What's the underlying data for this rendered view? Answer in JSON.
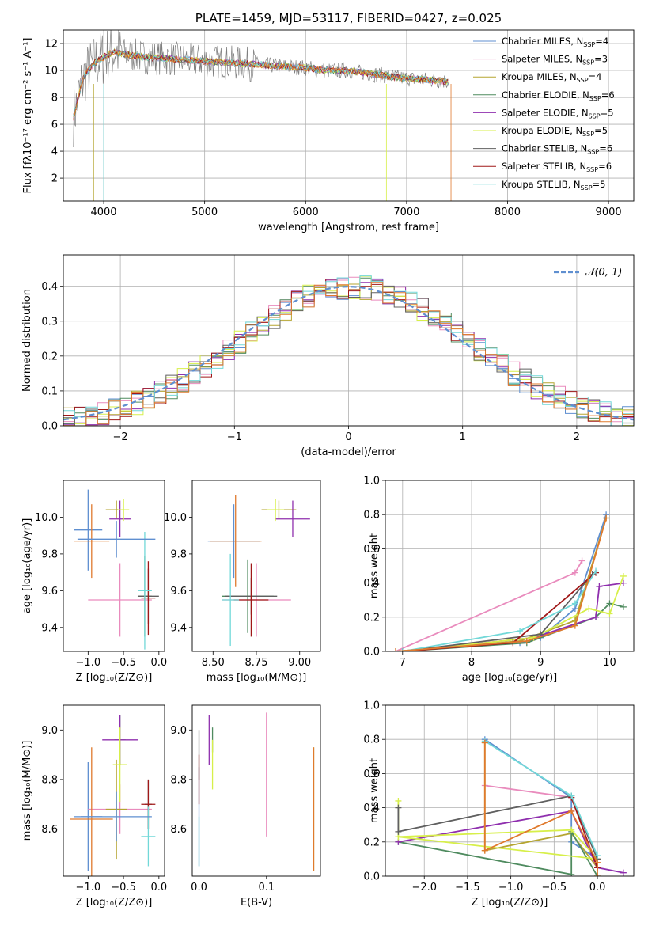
{
  "colors": {
    "s1": "#5f8fd0",
    "s2": "#e98bbd",
    "s3": "#b5a531",
    "s4": "#4f8b5f",
    "s5": "#8f2fae",
    "s6": "#d7ef4a",
    "s7": "#606060",
    "s8": "#a01818",
    "s9": "#72d8d8",
    "fit": "#e07a2d",
    "data": "#7f7f7f",
    "normal": "#5f8fd0"
  },
  "chart_data": [
    {
      "type": "line",
      "title": "PLATE=1459, MJD=53117, FIBERID=0427, z=0.025",
      "xlabel": "wavelength [Angstrom, rest frame]",
      "ylabel": "Flux [fλ10⁻¹⁷ erg cm⁻² s⁻¹ A⁻¹]",
      "xlim": [
        3600,
        9250
      ],
      "ylim": [
        0.3,
        13
      ],
      "xticks": [
        "4000",
        "5000",
        "6000",
        "7000",
        "8000",
        "9000"
      ],
      "yticks": [
        "2",
        "4",
        "6",
        "8",
        "10",
        "12"
      ],
      "grid": true,
      "legend": "top-right",
      "legend_entries": [
        {
          "name": "Chabrier MILES, N",
          "sub": "SSP",
          "rest": "=4",
          "color": "s1"
        },
        {
          "name": "Salpeter MILES, N",
          "sub": "SSP",
          "rest": "=3",
          "color": "s2"
        },
        {
          "name": "Kroupa MILES, N",
          "sub": "SSP",
          "rest": "=4",
          "color": "s3"
        },
        {
          "name": "Chabrier ELODIE, N",
          "sub": "SSP",
          "rest": "=6",
          "color": "s4"
        },
        {
          "name": "Salpeter ELODIE, N",
          "sub": "SSP",
          "rest": "=5",
          "color": "s5"
        },
        {
          "name": "Kroupa ELODIE, N",
          "sub": "SSP",
          "rest": "=5",
          "color": "s6"
        },
        {
          "name": "Chabrier STELIB, N",
          "sub": "SSP",
          "rest": "=6",
          "color": "s7"
        },
        {
          "name": "Salpeter STELIB, N",
          "sub": "SSP",
          "rest": "=6",
          "color": "s8"
        },
        {
          "name": "Kroupa STELIB, N",
          "sub": "SSP",
          "rest": "=5",
          "color": "s9"
        }
      ],
      "model_x": [
        3700,
        3800,
        3900,
        4000,
        4100,
        4200,
        4400,
        4600,
        4800,
        5000,
        5200,
        5400,
        5600,
        5800,
        6000,
        6200,
        6400,
        6600,
        6800,
        7000,
        7200,
        7400
      ],
      "model_y": [
        6.5,
        9.5,
        10.5,
        11.0,
        11.4,
        11.2,
        11.0,
        10.9,
        10.8,
        10.7,
        10.6,
        10.5,
        10.4,
        10.3,
        10.2,
        10.0,
        10.0,
        9.8,
        9.6,
        9.4,
        9.3,
        9.2
      ]
    },
    {
      "type": "bar",
      "xlabel": "(data-model)/error",
      "ylabel": "Normed distribution",
      "xlim": [
        -2.5,
        2.5
      ],
      "ylim": [
        0,
        0.49
      ],
      "xticks": [
        "−2",
        "−1",
        "0",
        "1",
        "2"
      ],
      "yticks": [
        "0.0",
        "0.1",
        "0.2",
        "0.3",
        "0.4"
      ],
      "grid": true,
      "legend": "top-right",
      "normal_label": "𝒩(0, 1)"
    },
    {
      "type": "scatter",
      "xlabel": "Z [log₁₀(Z/Z⊙)]",
      "ylabel": "age  [log₁₀(age/yr)]",
      "xlim": [
        -1.35,
        0.08
      ],
      "ylim": [
        9.27,
        10.2
      ],
      "xticks": [
        "−1.0",
        "−0.5",
        "0.0"
      ],
      "yticks": [
        "9.4",
        "9.6",
        "9.8",
        "10.0"
      ],
      "grid": false,
      "points": [
        {
          "x": -1.0,
          "y": 9.93,
          "dx": 0.2,
          "dy": 0.22,
          "c": "s1"
        },
        {
          "x": -0.55,
          "y": 9.55,
          "dx": 0.45,
          "dy": 0.2,
          "c": "s2"
        },
        {
          "x": -0.6,
          "y": 10.04,
          "dx": 0.15,
          "dy": 0.05,
          "c": "s3"
        },
        {
          "x": -0.2,
          "y": 9.57,
          "dx": 0.1,
          "dy": 0.22,
          "c": "s4"
        },
        {
          "x": -0.55,
          "y": 9.99,
          "dx": 0.15,
          "dy": 0.1,
          "c": "s5"
        },
        {
          "x": -0.5,
          "y": 10.04,
          "dx": 0.08,
          "dy": 0.06,
          "c": "s6"
        },
        {
          "x": -0.15,
          "y": 9.57,
          "dx": 0.15,
          "dy": 0.15,
          "c": "s7"
        },
        {
          "x": -0.15,
          "y": 9.56,
          "dx": 0.1,
          "dy": 0.2,
          "c": "s8"
        },
        {
          "x": -0.2,
          "y": 9.6,
          "dx": 0.1,
          "dy": 0.32,
          "c": "s9"
        },
        {
          "x": -0.95,
          "y": 9.87,
          "dx": 0.25,
          "dy": 0.2,
          "c": "fit"
        },
        {
          "x": -0.6,
          "y": 9.88,
          "dx": 0.55,
          "dy": 0.1,
          "c": "s1"
        }
      ]
    },
    {
      "type": "scatter",
      "xlabel": "mass [log₁₀(M/M⊙)]",
      "xlim": [
        8.38,
        9.12
      ],
      "ylim": [
        9.27,
        10.2
      ],
      "xticks": [
        "8.50",
        "8.75",
        "9.00"
      ],
      "yticks": [
        "9.4",
        "9.6",
        "9.8",
        "10.0"
      ],
      "grid": false,
      "points": [
        {
          "x": 8.62,
          "y": 9.87,
          "dx": 0.15,
          "dy": 0.2,
          "c": "s1"
        },
        {
          "x": 8.75,
          "y": 9.55,
          "dx": 0.2,
          "dy": 0.2,
          "c": "s2"
        },
        {
          "x": 8.88,
          "y": 10.04,
          "dx": 0.1,
          "dy": 0.05,
          "c": "s3"
        },
        {
          "x": 8.7,
          "y": 9.57,
          "dx": 0.15,
          "dy": 0.2,
          "c": "s4"
        },
        {
          "x": 8.96,
          "y": 9.99,
          "dx": 0.1,
          "dy": 0.1,
          "c": "s5"
        },
        {
          "x": 8.86,
          "y": 10.04,
          "dx": 0.05,
          "dy": 0.06,
          "c": "s6"
        },
        {
          "x": 8.72,
          "y": 9.57,
          "dx": 0.15,
          "dy": 0.1,
          "c": "s7"
        },
        {
          "x": 8.72,
          "y": 9.55,
          "dx": 0.1,
          "dy": 0.2,
          "c": "s8"
        },
        {
          "x": 8.6,
          "y": 9.55,
          "dx": 0.05,
          "dy": 0.25,
          "c": "s9"
        },
        {
          "x": 8.63,
          "y": 9.87,
          "dx": 0.15,
          "dy": 0.25,
          "c": "fit"
        }
      ]
    },
    {
      "type": "line",
      "xlabel": "age  [log₁₀(age/yr)]",
      "ylabel": "mass weight",
      "xlim": [
        6.75,
        10.35
      ],
      "ylim": [
        0,
        1.0
      ],
      "xticks": [
        "7",
        "8",
        "9",
        "10"
      ],
      "yticks": [
        "0.0",
        "0.2",
        "0.4",
        "0.6",
        "0.8",
        "1.0"
      ],
      "grid": true,
      "series": [
        {
          "c": "s1",
          "x": [
            6.9,
            8.7,
            9.0,
            9.5,
            9.95
          ],
          "y": [
            0.0,
            0.05,
            0.08,
            0.25,
            0.8
          ]
        },
        {
          "c": "s2",
          "x": [
            6.9,
            9.5,
            9.6
          ],
          "y": [
            0.0,
            0.46,
            0.53
          ]
        },
        {
          "c": "s3",
          "x": [
            6.9,
            8.7,
            9.5,
            9.95
          ],
          "y": [
            0.0,
            0.06,
            0.18,
            0.78
          ]
        },
        {
          "c": "s4",
          "x": [
            7.0,
            8.8,
            9.8,
            10.0,
            10.2
          ],
          "y": [
            0.0,
            0.05,
            0.2,
            0.28,
            0.26
          ]
        },
        {
          "c": "s5",
          "x": [
            7.0,
            8.9,
            9.8,
            9.85,
            10.2
          ],
          "y": [
            0.0,
            0.08,
            0.2,
            0.38,
            0.4
          ]
        },
        {
          "c": "s6",
          "x": [
            7.0,
            8.9,
            9.7,
            10.0,
            10.2
          ],
          "y": [
            0.0,
            0.08,
            0.25,
            0.22,
            0.44
          ]
        },
        {
          "c": "s7",
          "x": [
            7.0,
            9.0,
            9.75
          ],
          "y": [
            0.0,
            0.1,
            0.45
          ]
        },
        {
          "c": "s8",
          "x": [
            7.0,
            8.6,
            9.8
          ],
          "y": [
            0.0,
            0.05,
            0.46
          ]
        },
        {
          "c": "s9",
          "x": [
            7.0,
            8.7,
            9.5,
            9.8
          ],
          "y": [
            0.0,
            0.12,
            0.28,
            0.47
          ]
        },
        {
          "c": "fit",
          "x": [
            6.9,
            8.8,
            9.5,
            9.95
          ],
          "y": [
            0.0,
            0.06,
            0.15,
            0.78
          ]
        }
      ]
    },
    {
      "type": "scatter",
      "xlabel": "Z [log₁₀(Z/Z⊙)]",
      "ylabel": "mass [log₁₀(M/M⊙)]",
      "xlim": [
        -1.35,
        0.08
      ],
      "ylim": [
        8.41,
        9.1
      ],
      "xticks": [
        "−1.0",
        "−0.5",
        "0.0"
      ],
      "yticks": [
        "8.6",
        "8.8",
        "9.0"
      ],
      "grid": false,
      "points": [
        {
          "x": -1.0,
          "y": 8.65,
          "dx": 0.2,
          "dy": 0.22,
          "c": "s1"
        },
        {
          "x": -0.55,
          "y": 8.68,
          "dx": 0.45,
          "dy": 0.1,
          "c": "s2"
        },
        {
          "x": -0.6,
          "y": 8.68,
          "dx": 0.15,
          "dy": 0.2,
          "c": "s3"
        },
        {
          "x": -0.55,
          "y": 8.96,
          "dx": 0.08,
          "dy": 0.1,
          "c": "s4"
        },
        {
          "x": -0.55,
          "y": 8.96,
          "dx": 0.25,
          "dy": 0.1,
          "c": "s5"
        },
        {
          "x": -0.55,
          "y": 8.86,
          "dx": 0.1,
          "dy": 0.15,
          "c": "s6"
        },
        {
          "x": -0.15,
          "y": 8.7,
          "dx": 0.05,
          "dy": 0.1,
          "c": "s7"
        },
        {
          "x": -0.15,
          "y": 8.7,
          "dx": 0.1,
          "dy": 0.1,
          "c": "s8"
        },
        {
          "x": -0.15,
          "y": 8.57,
          "dx": 0.1,
          "dy": 0.12,
          "c": "s9"
        },
        {
          "x": -0.95,
          "y": 8.64,
          "dx": 0.3,
          "dy": 0.29,
          "c": "fit"
        },
        {
          "x": -0.6,
          "y": 8.65,
          "dx": 0.5,
          "dy": 0.1,
          "c": "s1"
        }
      ]
    },
    {
      "type": "scatter",
      "xlabel": "E(B-V)",
      "xlim": [
        -0.01,
        0.18
      ],
      "ylim": [
        8.41,
        9.1
      ],
      "xticks": [
        "0.0",
        "0.1"
      ],
      "yticks": [
        "8.6",
        "8.8",
        "9.0"
      ],
      "grid": false,
      "points": [
        {
          "x": 0.0,
          "y": 8.65,
          "dx": 0,
          "dy": 0.2,
          "c": "s1"
        },
        {
          "x": 0.1,
          "y": 8.82,
          "dx": 0,
          "dy": 0.25,
          "c": "s2"
        },
        {
          "x": 0.17,
          "y": 8.68,
          "dx": 0,
          "dy": 0.25,
          "c": "s3"
        },
        {
          "x": 0.02,
          "y": 8.96,
          "dx": 0,
          "dy": 0.05,
          "c": "s4"
        },
        {
          "x": 0.015,
          "y": 8.96,
          "dx": 0,
          "dy": 0.1,
          "c": "s5"
        },
        {
          "x": 0.02,
          "y": 8.86,
          "dx": 0,
          "dy": 0.1,
          "c": "s6"
        },
        {
          "x": 0.0,
          "y": 8.9,
          "dx": 0,
          "dy": 0.1,
          "c": "s7"
        },
        {
          "x": 0.0,
          "y": 8.8,
          "dx": 0,
          "dy": 0.1,
          "c": "s8"
        },
        {
          "x": 0.0,
          "y": 8.55,
          "dx": 0,
          "dy": 0.1,
          "c": "s9"
        },
        {
          "x": 0.17,
          "y": 8.68,
          "dx": 0,
          "dy": 0.25,
          "c": "fit"
        }
      ]
    },
    {
      "type": "line",
      "xlabel": "Z [log₁₀(Z/Z⊙)]",
      "ylabel": "mass weight",
      "xlim": [
        -2.45,
        0.42
      ],
      "ylim": [
        0,
        1.0
      ],
      "xticks": [
        "−2.0",
        "−1.5",
        "−1.0",
        "−0.5",
        "0.0"
      ],
      "yticks": [
        "0.0",
        "0.2",
        "0.4",
        "0.6",
        "0.8",
        "1.0"
      ],
      "grid": true,
      "series": [
        {
          "c": "s1",
          "x": [
            -1.3,
            -0.3,
            -0.3,
            0.0
          ],
          "y": [
            0.8,
            0.46,
            0.2,
            0.1
          ]
        },
        {
          "c": "s2",
          "x": [
            -1.3,
            -0.3,
            0.0
          ],
          "y": [
            0.53,
            0.46,
            0.1
          ]
        },
        {
          "c": "s3",
          "x": [
            -1.3,
            -1.3,
            -0.3,
            0.0
          ],
          "y": [
            0.78,
            0.15,
            0.25,
            0.05
          ]
        },
        {
          "c": "s4",
          "x": [
            -2.3,
            -0.3,
            -0.3,
            0.0
          ],
          "y": [
            0.2,
            0.01,
            0.26,
            0.0
          ]
        },
        {
          "c": "s5",
          "x": [
            -2.3,
            -0.3,
            0.0,
            0.3
          ],
          "y": [
            0.2,
            0.38,
            0.05,
            0.02
          ]
        },
        {
          "c": "s6",
          "x": [
            -2.3,
            -0.3,
            0.0,
            -2.3,
            -2.3
          ],
          "y": [
            0.23,
            0.27,
            0.1,
            0.23,
            0.44
          ]
        },
        {
          "c": "s7",
          "x": [
            -2.3,
            -2.3,
            -0.3,
            0.0
          ],
          "y": [
            0.4,
            0.26,
            0.47,
            0.1
          ]
        },
        {
          "c": "s8",
          "x": [
            -0.3,
            0.0
          ],
          "y": [
            0.46,
            0.05
          ]
        },
        {
          "c": "s9",
          "x": [
            -1.3,
            -0.3,
            0.0
          ],
          "y": [
            0.79,
            0.47,
            0.12
          ]
        },
        {
          "c": "fit",
          "x": [
            -1.3,
            -1.3,
            -0.3,
            0.0,
            0.0
          ],
          "y": [
            0.78,
            0.15,
            0.38,
            0.08,
            0.0
          ]
        }
      ]
    }
  ]
}
